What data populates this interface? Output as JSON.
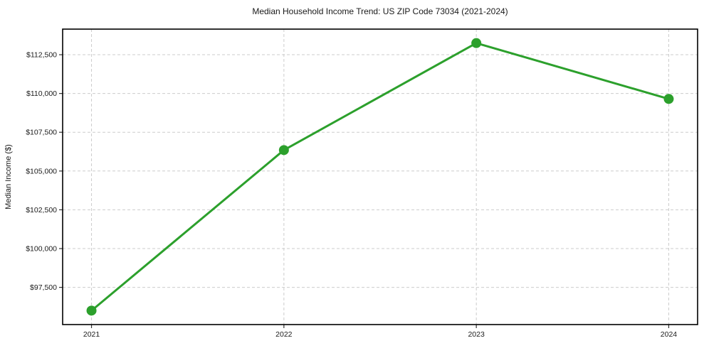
{
  "chart_data": {
    "type": "line",
    "title": "Median Household Income Trend: US ZIP Code 73034 (2021-2024)",
    "xlabel": "",
    "ylabel": "Median Income ($)",
    "x": [
      2021,
      2022,
      2023,
      2024
    ],
    "values": [
      96000,
      106350,
      113250,
      109650
    ],
    "x_tick_labels": [
      "2021",
      "2022",
      "2023",
      "2024"
    ],
    "y_ticks": [
      97500,
      100000,
      102500,
      105000,
      107500,
      110000,
      112500
    ],
    "y_tick_labels": [
      "$97,500",
      "$100,000",
      "$102,500",
      "$105,000",
      "$107,500",
      "$110,000",
      "$112,500"
    ],
    "xlim": [
      2020.85,
      2024.15
    ],
    "ylim": [
      95100,
      114150
    ],
    "grid": true,
    "grid_style": "dashed",
    "legend": false,
    "line_color": "#2ca02c",
    "marker": "circle",
    "marker_size": 7,
    "line_width": 3
  },
  "style": {
    "background": "#ffffff",
    "grid_color": "#cccccc",
    "spine_color": "#000000",
    "tick_color": "#333333",
    "text_color": "#1a1a1a"
  }
}
